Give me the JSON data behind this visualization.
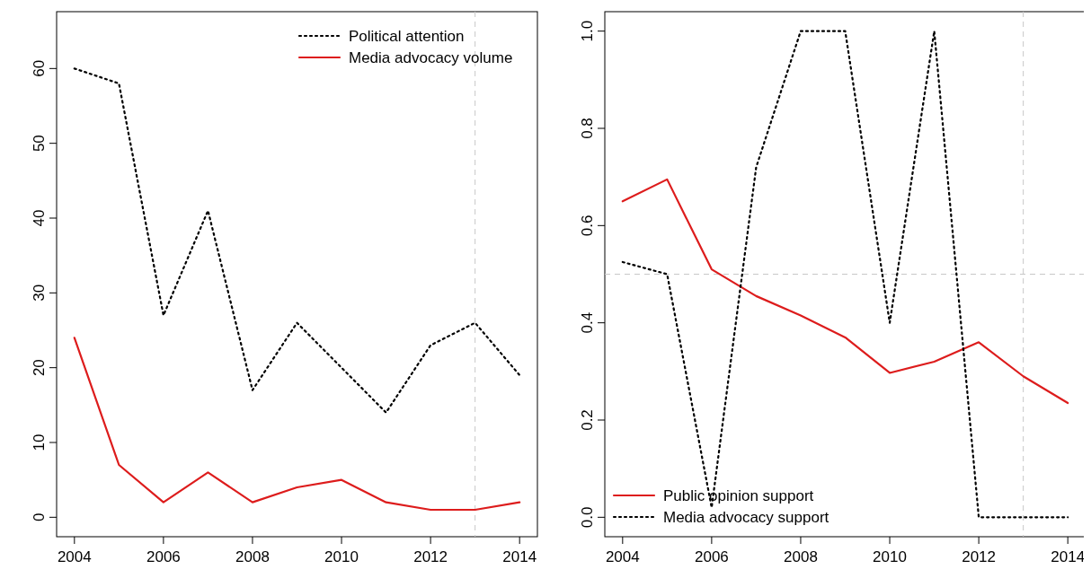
{
  "chart_data": [
    {
      "type": "line",
      "x": [
        2004,
        2005,
        2006,
        2007,
        2008,
        2009,
        2010,
        2011,
        2012,
        2013,
        2014
      ],
      "xlim": [
        2003.6,
        2014.4
      ],
      "xticks": [
        2004,
        2006,
        2008,
        2010,
        2012,
        2014
      ],
      "ylim": [
        -2.6,
        67.6
      ],
      "yticks": [
        0,
        10,
        20,
        30,
        40,
        50,
        60
      ],
      "legend": "top right",
      "series": [
        {
          "name": "Political attention",
          "color": "#000000",
          "line_style": "dotted",
          "values": [
            60,
            58,
            27,
            41,
            17,
            26,
            20,
            14,
            23,
            26,
            19
          ]
        },
        {
          "name": "Media advocacy volume",
          "color": "#dd1c1c",
          "line_style": "solid",
          "values": [
            24,
            7,
            2,
            6,
            2,
            4,
            5,
            2,
            1,
            1,
            2
          ]
        }
      ],
      "ref_lines": [
        {
          "axis": "x",
          "value": 2013,
          "color": "#c8c8c8",
          "line_style": "dashed"
        }
      ]
    },
    {
      "type": "line",
      "x": [
        2004,
        2005,
        2006,
        2007,
        2008,
        2009,
        2010,
        2011,
        2012,
        2013,
        2014
      ],
      "xlim": [
        2003.6,
        2014.4
      ],
      "xticks": [
        2004,
        2006,
        2008,
        2010,
        2012,
        2014
      ],
      "ylim": [
        -0.04,
        1.04
      ],
      "yticks": [
        {
          "value": 0,
          "label": "0.0"
        },
        {
          "value": 0.2,
          "label": "0.2"
        },
        {
          "value": 0.4,
          "label": "0.4"
        },
        {
          "value": 0.6,
          "label": "0.6"
        },
        {
          "value": 0.8,
          "label": "0.8"
        },
        {
          "value": 1,
          "label": "1.0"
        }
      ],
      "legend": "bottom left",
      "series": [
        {
          "name": "Public opinion support",
          "color": "#dd1c1c",
          "line_style": "solid",
          "values": [
            0.65,
            0.695,
            0.51,
            0.455,
            0.415,
            0.37,
            0.297,
            0.32,
            0.36,
            0.29,
            0.235
          ]
        },
        {
          "name": "Media advocacy support",
          "color": "#000000",
          "line_style": "dotted",
          "values": [
            0.525,
            0.5,
            0.02,
            0.72,
            1.0,
            1.0,
            0.4,
            1.0,
            0.0,
            0.0,
            0.0
          ]
        }
      ],
      "ref_lines": [
        {
          "axis": "x",
          "value": 2013,
          "color": "#c8c8c8",
          "line_style": "dashed"
        },
        {
          "axis": "y",
          "value": 0.5,
          "color": "#c8c8c8",
          "line_style": "dashed"
        }
      ]
    }
  ]
}
